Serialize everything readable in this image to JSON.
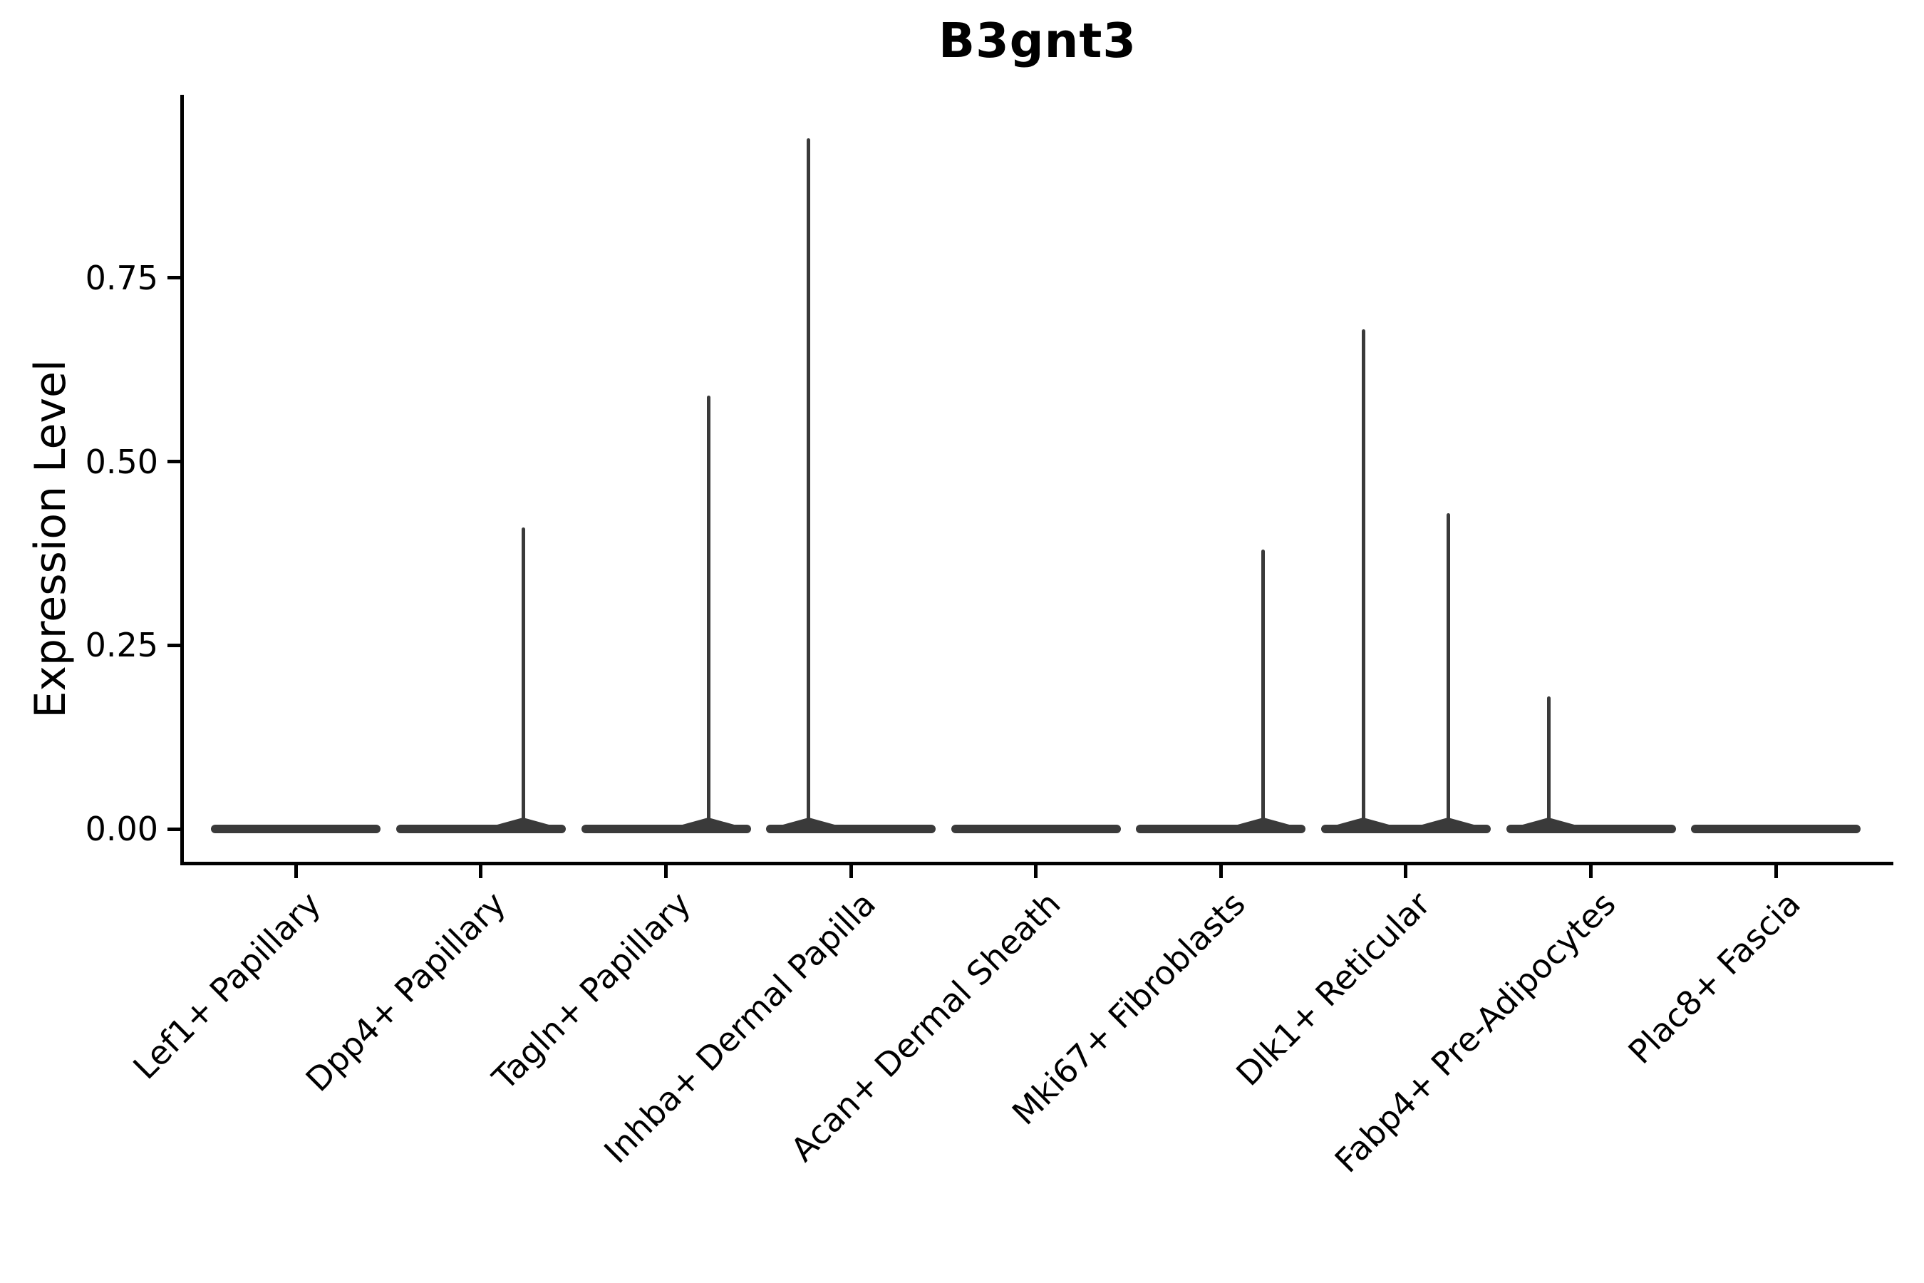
{
  "figure": {
    "title": "B3gnt3"
  },
  "chart_data": {
    "type": "violin",
    "title": "B3gnt3",
    "xlabel": "",
    "ylabel": "Expression Level",
    "grid": false,
    "legend": null,
    "background": "#ffffff",
    "colors": {
      "violin_stroke": "#3a3a3a",
      "axis": "#000000",
      "text": "#000000"
    },
    "y_axis": {
      "range": [
        -0.05,
        1.0
      ],
      "ticks": [
        {
          "label": "0.00",
          "value": 0.0
        },
        {
          "label": "0.25",
          "value": 0.25
        },
        {
          "label": "0.50",
          "value": 0.5
        },
        {
          "label": "0.75",
          "value": 0.75
        }
      ]
    },
    "categories": [
      "Lef1+ Papillary",
      "Dpp4+ Papillary",
      "Tagln+ Papillary",
      "Inhba+ Dermal Papilla",
      "Acan+ Dermal Sheath",
      "Mki67+ Fibroblasts",
      "Dlk1+ Reticular",
      "Fabp4+ Pre-Adipocytes",
      "Plac8+ Fascia"
    ],
    "violins": [
      {
        "category": "Lef1+ Papillary",
        "body_at_zero": true,
        "spikes": []
      },
      {
        "category": "Dpp4+ Papillary",
        "body_at_zero": true,
        "spikes": [
          {
            "side": "right",
            "max_expression": 0.41
          }
        ]
      },
      {
        "category": "Tagln+ Papillary",
        "body_at_zero": true,
        "spikes": [
          {
            "side": "right",
            "max_expression": 0.59
          }
        ]
      },
      {
        "category": "Inhba+ Dermal Papilla",
        "body_at_zero": true,
        "spikes": [
          {
            "side": "left",
            "max_expression": 0.94
          }
        ]
      },
      {
        "category": "Acan+ Dermal Sheath",
        "body_at_zero": true,
        "spikes": []
      },
      {
        "category": "Mki67+ Fibroblasts",
        "body_at_zero": true,
        "spikes": [
          {
            "side": "right",
            "max_expression": 0.38
          }
        ]
      },
      {
        "category": "Dlk1+ Reticular",
        "body_at_zero": true,
        "spikes": [
          {
            "side": "left",
            "max_expression": 0.68
          },
          {
            "side": "right",
            "max_expression": 0.43
          }
        ]
      },
      {
        "category": "Fabp4+ Pre-Adipocytes",
        "body_at_zero": true,
        "spikes": [
          {
            "side": "left",
            "max_expression": 0.18
          }
        ]
      },
      {
        "category": "Plac8+ Fascia",
        "body_at_zero": true,
        "spikes": []
      }
    ]
  }
}
